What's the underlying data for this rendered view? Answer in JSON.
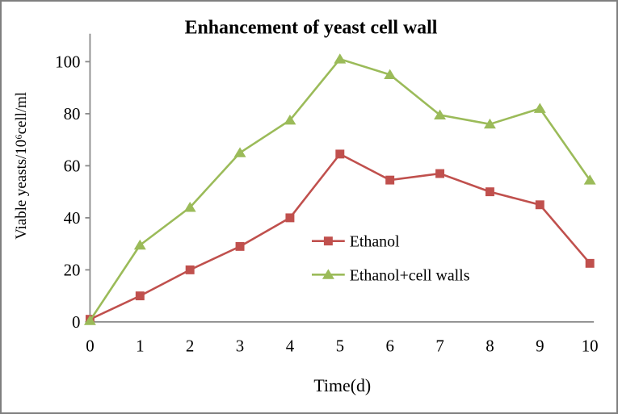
{
  "figure": {
    "background": "#ffffff",
    "border_color": "#7f7f7f"
  },
  "chart_data": {
    "type": "line",
    "title": "Enhancement of yeast cell wall",
    "xlabel": "Time(d)",
    "ylabel": "Viable yeasts/10⁶cell/ml",
    "x": [
      0,
      1,
      2,
      3,
      4,
      5,
      6,
      7,
      8,
      9,
      10
    ],
    "xlim": [
      0,
      10
    ],
    "ylim": [
      0,
      110
    ],
    "yticks": [
      0,
      20,
      40,
      60,
      80,
      100
    ],
    "grid": false,
    "axis_color": "#8a8a8a",
    "legend_position": "inside-center-right",
    "series": [
      {
        "name": "Ethanol",
        "marker": "square",
        "color": "#C0504D",
        "values": [
          1,
          10,
          20,
          29,
          40,
          64.5,
          54.5,
          57,
          50,
          45,
          22.5
        ]
      },
      {
        "name": "Ethanol+cell walls",
        "marker": "triangle",
        "color": "#9BBB59",
        "values": [
          0.5,
          29.5,
          44,
          65,
          77.5,
          101,
          95,
          79.5,
          76,
          82,
          54.5
        ]
      }
    ]
  }
}
